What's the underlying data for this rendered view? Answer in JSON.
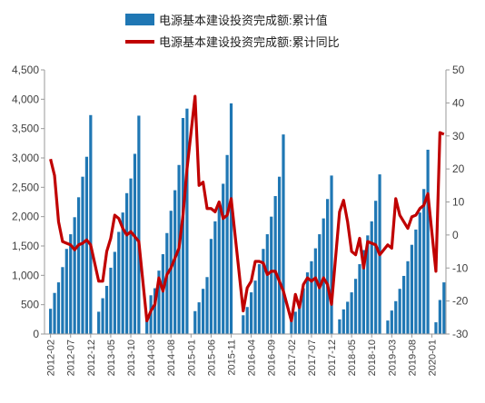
{
  "chart_data": {
    "type": "bar",
    "legend": {
      "placement": "top-center"
    },
    "colors": {
      "bar": "#1F77B4",
      "line": "#C00000",
      "axis": "#9a9a9a"
    },
    "y_left": {
      "min": 0,
      "max": 4500,
      "ticks": [
        "0",
        "500",
        "1,000",
        "1,500",
        "2,000",
        "2,500",
        "3,000",
        "3,500",
        "4,000",
        "4,500"
      ]
    },
    "y_right": {
      "min": -30,
      "max": 50,
      "ticks": [
        "-30",
        "-20",
        "-10",
        "0",
        "10",
        "20",
        "30",
        "40",
        "50"
      ]
    },
    "x_tick_labels": [
      "2012-02",
      "2012-07",
      "2012-12",
      "2013-05",
      "2013-10",
      "2014-03",
      "2014-08",
      "2015-01",
      "2015-06",
      "2015-11",
      "2016-04",
      "2016-09",
      "2017-02",
      "2017-07",
      "2017-12",
      "2018-05",
      "2018-10",
      "2019-03",
      "2019-08",
      "2020-01"
    ],
    "grid": false,
    "series": [
      {
        "name": "电源基本建设投资完成额:累计值",
        "type": "bar",
        "axis": "left",
        "points": [
          {
            "x": "2012-02",
            "y": 430
          },
          {
            "x": "2012-03",
            "y": 700
          },
          {
            "x": "2012-04",
            "y": 880
          },
          {
            "x": "2012-05",
            "y": 1140
          },
          {
            "x": "2012-06",
            "y": 1450
          },
          {
            "x": "2012-07",
            "y": 1700
          },
          {
            "x": "2012-08",
            "y": 1990
          },
          {
            "x": "2012-09",
            "y": 2330
          },
          {
            "x": "2012-10",
            "y": 2680
          },
          {
            "x": "2012-11",
            "y": 3020
          },
          {
            "x": "2012-12",
            "y": 3730
          },
          {
            "x": "2013-02",
            "y": 380
          },
          {
            "x": "2013-03",
            "y": 610
          },
          {
            "x": "2013-04",
            "y": 820
          },
          {
            "x": "2013-05",
            "y": 1130
          },
          {
            "x": "2013-06",
            "y": 1400
          },
          {
            "x": "2013-07",
            "y": 1740
          },
          {
            "x": "2013-08",
            "y": 2070
          },
          {
            "x": "2013-09",
            "y": 2400
          },
          {
            "x": "2013-10",
            "y": 2650
          },
          {
            "x": "2013-11",
            "y": 3070
          },
          {
            "x": "2013-12",
            "y": 3720
          },
          {
            "x": "2014-02",
            "y": 300
          },
          {
            "x": "2014-03",
            "y": 660
          },
          {
            "x": "2014-04",
            "y": 780
          },
          {
            "x": "2014-05",
            "y": 1080
          },
          {
            "x": "2014-06",
            "y": 1360
          },
          {
            "x": "2014-07",
            "y": 1720
          },
          {
            "x": "2014-08",
            "y": 2100
          },
          {
            "x": "2014-09",
            "y": 2450
          },
          {
            "x": "2014-10",
            "y": 2880
          },
          {
            "x": "2014-11",
            "y": 3680
          },
          {
            "x": "2014-12",
            "y": 3840
          },
          {
            "x": "2015-02",
            "y": 390
          },
          {
            "x": "2015-03",
            "y": 540
          },
          {
            "x": "2015-04",
            "y": 770
          },
          {
            "x": "2015-05",
            "y": 970
          },
          {
            "x": "2015-06",
            "y": 1620
          },
          {
            "x": "2015-07",
            "y": 1920
          },
          {
            "x": "2015-08",
            "y": 2250
          },
          {
            "x": "2015-09",
            "y": 2560
          },
          {
            "x": "2015-10",
            "y": 3050
          },
          {
            "x": "2015-11",
            "y": 3930
          },
          {
            "x": "2016-02",
            "y": 320
          },
          {
            "x": "2016-03",
            "y": 460
          },
          {
            "x": "2016-04",
            "y": 710
          },
          {
            "x": "2016-05",
            "y": 910
          },
          {
            "x": "2016-06",
            "y": 1190
          },
          {
            "x": "2016-07",
            "y": 1450
          },
          {
            "x": "2016-08",
            "y": 1700
          },
          {
            "x": "2016-09",
            "y": 2000
          },
          {
            "x": "2016-10",
            "y": 2350
          },
          {
            "x": "2016-11",
            "y": 2680
          },
          {
            "x": "2016-12",
            "y": 3400
          },
          {
            "x": "2017-02",
            "y": 240
          },
          {
            "x": "2017-03",
            "y": 380
          },
          {
            "x": "2017-04",
            "y": 550
          },
          {
            "x": "2017-05",
            "y": 780
          },
          {
            "x": "2017-06",
            "y": 1050
          },
          {
            "x": "2017-07",
            "y": 1240
          },
          {
            "x": "2017-08",
            "y": 1460
          },
          {
            "x": "2017-09",
            "y": 1700
          },
          {
            "x": "2017-10",
            "y": 1970
          },
          {
            "x": "2017-11",
            "y": 2300
          },
          {
            "x": "2017-12",
            "y": 2700
          },
          {
            "x": "2018-02",
            "y": 250
          },
          {
            "x": "2018-03",
            "y": 420
          },
          {
            "x": "2018-04",
            "y": 550
          },
          {
            "x": "2018-05",
            "y": 710
          },
          {
            "x": "2018-06",
            "y": 940
          },
          {
            "x": "2018-07",
            "y": 1190
          },
          {
            "x": "2018-08",
            "y": 1430
          },
          {
            "x": "2018-09",
            "y": 1680
          },
          {
            "x": "2018-10",
            "y": 1920
          },
          {
            "x": "2018-11",
            "y": 2270
          },
          {
            "x": "2018-12",
            "y": 2720
          },
          {
            "x": "2019-02",
            "y": 230
          },
          {
            "x": "2019-03",
            "y": 400
          },
          {
            "x": "2019-04",
            "y": 560
          },
          {
            "x": "2019-05",
            "y": 770
          },
          {
            "x": "2019-06",
            "y": 990
          },
          {
            "x": "2019-07",
            "y": 1240
          },
          {
            "x": "2019-08",
            "y": 1520
          },
          {
            "x": "2019-09",
            "y": 1780
          },
          {
            "x": "2019-10",
            "y": 2070
          },
          {
            "x": "2019-11",
            "y": 2470
          },
          {
            "x": "2019-12",
            "y": 3140
          },
          {
            "x": "2020-02",
            "y": 200
          },
          {
            "x": "2020-03",
            "y": 580
          },
          {
            "x": "2020-04",
            "y": 880
          }
        ]
      },
      {
        "name": "电源基本建设投资完成额:累计同比",
        "type": "line",
        "axis": "right",
        "points": [
          {
            "x": "2012-02",
            "y": 23
          },
          {
            "x": "2012-03",
            "y": 18
          },
          {
            "x": "2012-04",
            "y": 4
          },
          {
            "x": "2012-05",
            "y": -2
          },
          {
            "x": "2012-06",
            "y": -2.5
          },
          {
            "x": "2012-07",
            "y": -3
          },
          {
            "x": "2012-08",
            "y": -4.5
          },
          {
            "x": "2012-09",
            "y": -3
          },
          {
            "x": "2012-10",
            "y": -2.5
          },
          {
            "x": "2012-11",
            "y": -1.5
          },
          {
            "x": "2012-12",
            "y": -3
          },
          {
            "x": "2013-02",
            "y": -14
          },
          {
            "x": "2013-03",
            "y": -14
          },
          {
            "x": "2013-04",
            "y": -5
          },
          {
            "x": "2013-05",
            "y": -1
          },
          {
            "x": "2013-06",
            "y": 6
          },
          {
            "x": "2013-07",
            "y": 5
          },
          {
            "x": "2013-08",
            "y": 2
          },
          {
            "x": "2013-09",
            "y": 0
          },
          {
            "x": "2013-10",
            "y": 1
          },
          {
            "x": "2013-11",
            "y": -0.5
          },
          {
            "x": "2013-12",
            "y": -2
          },
          {
            "x": "2014-02",
            "y": -26
          },
          {
            "x": "2014-03",
            "y": -23
          },
          {
            "x": "2014-04",
            "y": -21
          },
          {
            "x": "2014-05",
            "y": -13
          },
          {
            "x": "2014-06",
            "y": -17
          },
          {
            "x": "2014-07",
            "y": -12
          },
          {
            "x": "2014-08",
            "y": -10
          },
          {
            "x": "2014-09",
            "y": -7
          },
          {
            "x": "2014-10",
            "y": -4
          },
          {
            "x": "2014-11",
            "y": 6
          },
          {
            "x": "2014-12",
            "y": 20
          },
          {
            "x": "2015-02",
            "y": 42
          },
          {
            "x": "2015-03",
            "y": 15
          },
          {
            "x": "2015-04",
            "y": 16
          },
          {
            "x": "2015-05",
            "y": 8
          },
          {
            "x": "2015-06",
            "y": 8
          },
          {
            "x": "2015-07",
            "y": 7
          },
          {
            "x": "2015-08",
            "y": 10
          },
          {
            "x": "2015-09",
            "y": 5
          },
          {
            "x": "2015-10",
            "y": 6
          },
          {
            "x": "2015-11",
            "y": 11
          },
          {
            "x": "2016-02",
            "y": -23
          },
          {
            "x": "2016-03",
            "y": -16
          },
          {
            "x": "2016-04",
            "y": -14
          },
          {
            "x": "2016-05",
            "y": -8
          },
          {
            "x": "2016-06",
            "y": -8
          },
          {
            "x": "2016-07",
            "y": -8.5
          },
          {
            "x": "2016-08",
            "y": -12
          },
          {
            "x": "2016-09",
            "y": -11
          },
          {
            "x": "2016-10",
            "y": -11
          },
          {
            "x": "2016-11",
            "y": -14
          },
          {
            "x": "2016-12",
            "y": -17
          },
          {
            "x": "2017-02",
            "y": -26
          },
          {
            "x": "2017-03",
            "y": -18
          },
          {
            "x": "2017-04",
            "y": -22
          },
          {
            "x": "2017-05",
            "y": -15
          },
          {
            "x": "2017-06",
            "y": -13
          },
          {
            "x": "2017-07",
            "y": -14
          },
          {
            "x": "2017-08",
            "y": -13
          },
          {
            "x": "2017-09",
            "y": -16
          },
          {
            "x": "2017-10",
            "y": -13
          },
          {
            "x": "2017-11",
            "y": -15
          },
          {
            "x": "2017-12",
            "y": -21
          },
          {
            "x": "2018-02",
            "y": 7
          },
          {
            "x": "2018-03",
            "y": 10.5
          },
          {
            "x": "2018-04",
            "y": 4
          },
          {
            "x": "2018-05",
            "y": -5
          },
          {
            "x": "2018-06",
            "y": -6
          },
          {
            "x": "2018-07",
            "y": -1
          },
          {
            "x": "2018-08",
            "y": -10
          },
          {
            "x": "2018-09",
            "y": -2
          },
          {
            "x": "2018-10",
            "y": -2.5
          },
          {
            "x": "2018-11",
            "y": -3
          },
          {
            "x": "2018-12",
            "y": -6
          },
          {
            "x": "2019-02",
            "y": -3
          },
          {
            "x": "2019-03",
            "y": -4
          },
          {
            "x": "2019-04",
            "y": 11
          },
          {
            "x": "2019-05",
            "y": 6
          },
          {
            "x": "2019-06",
            "y": 4
          },
          {
            "x": "2019-07",
            "y": 2
          },
          {
            "x": "2019-08",
            "y": 5.5
          },
          {
            "x": "2019-09",
            "y": 6
          },
          {
            "x": "2019-10",
            "y": 8
          },
          {
            "x": "2019-11",
            "y": 9
          },
          {
            "x": "2019-12",
            "y": 12.5
          },
          {
            "x": "2020-02",
            "y": -11
          },
          {
            "x": "2020-03",
            "y": 31
          },
          {
            "x": "2020-04",
            "y": 30.5
          }
        ]
      }
    ]
  }
}
